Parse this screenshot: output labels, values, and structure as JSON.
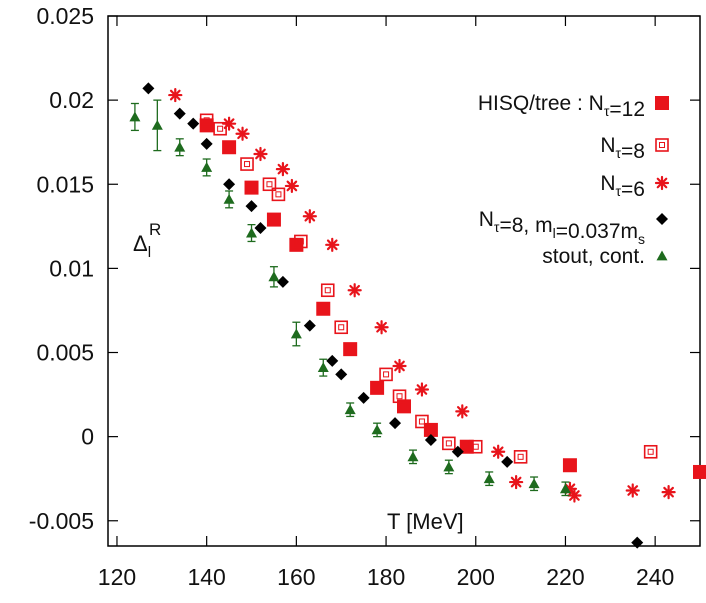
{
  "chart_data": {
    "type": "scatter",
    "title": "",
    "xlabel": "T [MeV]",
    "ylabel": "Δ_l^R",
    "ylabel_main": "Δ",
    "ylabel_sub": "l",
    "ylabel_sup": "R",
    "xlim": [
      118,
      250
    ],
    "ylim": [
      -0.0065,
      0.025
    ],
    "grid": false,
    "legend_position": "top-right",
    "x_ticks": [
      120,
      140,
      160,
      180,
      200,
      220,
      240
    ],
    "x_tick_labels": [
      "120",
      "140",
      "160",
      "180",
      "200",
      "220",
      "240"
    ],
    "y_ticks": [
      0.025,
      0.02,
      0.015,
      0.01,
      0.005,
      0,
      -0.005
    ],
    "y_tick_labels": [
      "0.025",
      "0.02",
      "0.015",
      "0.01",
      "0.005",
      "0",
      "-0.005"
    ],
    "legend": [
      {
        "series": "nt12",
        "parts": [
          [
            "HISQ/tree : N",
            ""
          ],
          [
            "τ",
            "sub"
          ],
          [
            "=12",
            ""
          ]
        ]
      },
      {
        "series": "nt8",
        "parts": [
          [
            "N",
            ""
          ],
          [
            "τ",
            "sub"
          ],
          [
            "=8",
            ""
          ]
        ]
      },
      {
        "series": "nt6",
        "parts": [
          [
            "N",
            ""
          ],
          [
            "τ",
            "sub"
          ],
          [
            "=6",
            ""
          ]
        ]
      },
      {
        "series": "mass",
        "parts": [
          [
            "N",
            ""
          ],
          [
            "τ",
            "sub"
          ],
          [
            "=8, m",
            ""
          ],
          [
            "l",
            "sub"
          ],
          [
            "=0.037m",
            ""
          ],
          [
            "s",
            "sub"
          ]
        ]
      },
      {
        "series": "stout",
        "parts": [
          [
            "stout, cont.",
            ""
          ]
        ]
      }
    ],
    "series": [
      {
        "id": "nt12",
        "marker": "filled-square",
        "color": "#e8141b",
        "x": [
          140,
          145,
          150,
          155,
          160,
          166,
          172,
          178,
          184,
          190,
          198,
          221,
          250
        ],
        "y": [
          0.0185,
          0.0172,
          0.0148,
          0.0129,
          0.0114,
          0.0076,
          0.0052,
          0.0029,
          0.0018,
          0.0004,
          -0.0006,
          -0.0017,
          -0.0021
        ]
      },
      {
        "id": "nt8",
        "marker": "open-square",
        "color": "#e8141b",
        "x": [
          140,
          143,
          149,
          154,
          156,
          161,
          167,
          170,
          180,
          183,
          188,
          194,
          200,
          210,
          239
        ],
        "y": [
          0.0188,
          0.0183,
          0.0162,
          0.015,
          0.0144,
          0.0116,
          0.0087,
          0.0065,
          0.0037,
          0.0024,
          0.0009,
          -0.0004,
          -0.0006,
          -0.0012,
          -0.0009
        ]
      },
      {
        "id": "nt6",
        "marker": "star",
        "color": "#e8141b",
        "x": [
          133,
          145,
          148,
          152,
          157,
          159,
          163,
          168,
          173,
          179,
          183,
          188,
          197,
          205,
          209,
          221,
          222,
          235,
          243
        ],
        "y": [
          0.0203,
          0.0186,
          0.018,
          0.0168,
          0.0159,
          0.0149,
          0.0131,
          0.0114,
          0.0087,
          0.0065,
          0.0042,
          0.0028,
          0.0015,
          -0.0009,
          -0.0027,
          -0.0031,
          -0.0035,
          -0.0032,
          -0.0033
        ]
      },
      {
        "id": "mass",
        "marker": "diamond",
        "color": "#000000",
        "x": [
          127,
          134,
          137,
          140,
          145,
          150,
          152,
          157,
          163,
          168,
          170,
          175,
          182,
          190,
          196,
          207,
          236
        ],
        "y": [
          0.0207,
          0.0192,
          0.0186,
          0.0174,
          0.015,
          0.0137,
          0.0124,
          0.0092,
          0.0066,
          0.0045,
          0.0037,
          0.0023,
          0.0008,
          -0.0002,
          -0.0009,
          -0.0015,
          -0.0063
        ]
      },
      {
        "id": "stout",
        "marker": "triangle",
        "color": "#1e6b1e",
        "x": [
          124,
          129,
          134,
          140,
          145,
          150,
          155,
          160,
          166,
          172,
          178,
          186,
          194,
          203,
          213,
          220
        ],
        "y": [
          0.019,
          0.0185,
          0.0172,
          0.016,
          0.0141,
          0.0121,
          0.0095,
          0.0061,
          0.0041,
          0.0016,
          0.0004,
          -0.0012,
          -0.0018,
          -0.0025,
          -0.0028,
          -0.0031
        ],
        "err": [
          0.0008,
          0.0015,
          0.0005,
          0.0005,
          0.0005,
          0.0005,
          0.0006,
          0.0007,
          0.0005,
          0.0004,
          0.0004,
          0.0004,
          0.0004,
          0.0004,
          0.0004,
          0.0004
        ]
      }
    ]
  }
}
